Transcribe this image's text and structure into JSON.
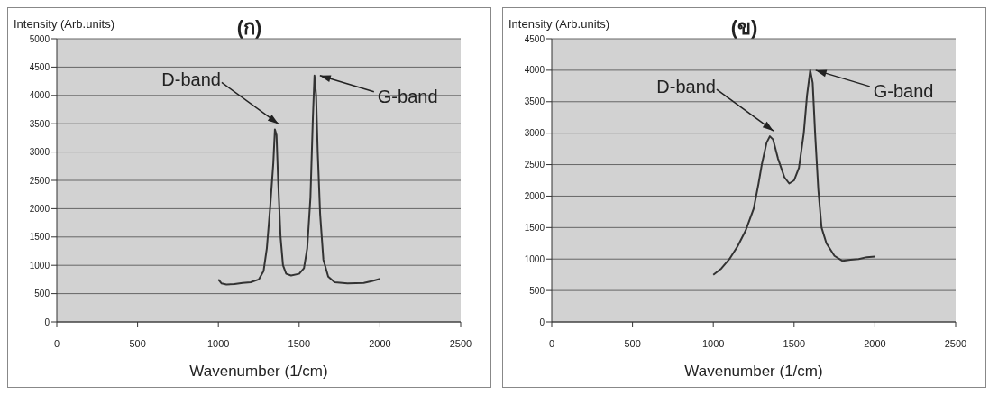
{
  "chart_data": [
    {
      "type": "line",
      "title": "(ก)",
      "xlabel": "Wavenumber (1/cm)",
      "ylabel": "Intensity (Arb.units)",
      "xlim": [
        0,
        2500
      ],
      "xticks": [
        0,
        500,
        1000,
        1500,
        2000,
        2500
      ],
      "ylim": [
        0,
        5000
      ],
      "yticks": [
        0,
        500,
        1000,
        1500,
        2000,
        2500,
        3000,
        3500,
        4000,
        4500,
        5000
      ],
      "grid": "y",
      "legend": false,
      "marker": "none",
      "line_style": "solid",
      "series": [
        {
          "color": "#333333",
          "x": [
            1000,
            1020,
            1050,
            1100,
            1150,
            1200,
            1250,
            1280,
            1300,
            1320,
            1340,
            1350,
            1360,
            1370,
            1385,
            1400,
            1420,
            1450,
            1500,
            1530,
            1550,
            1570,
            1585,
            1595,
            1605,
            1615,
            1630,
            1650,
            1680,
            1720,
            1800,
            1900,
            1950,
            2000
          ],
          "values": [
            750,
            680,
            660,
            670,
            690,
            700,
            750,
            900,
            1300,
            2000,
            2800,
            3400,
            3300,
            2500,
            1500,
            1000,
            850,
            820,
            850,
            950,
            1300,
            2200,
            3600,
            4350,
            4000,
            3000,
            1900,
            1100,
            800,
            700,
            680,
            690,
            720,
            760
          ]
        }
      ],
      "annotations": [
        {
          "text": "D-band",
          "x": 1350,
          "y": 3400
        },
        {
          "text": "G-band",
          "x": 1595,
          "y": 4350
        }
      ]
    },
    {
      "type": "line",
      "title": "(ข)",
      "xlabel": "Wavenumber (1/cm)",
      "ylabel": "Intensity (Arb.units)",
      "xlim": [
        0,
        2500
      ],
      "xticks": [
        0,
        500,
        1000,
        1500,
        2000,
        2500
      ],
      "ylim": [
        0,
        4500
      ],
      "yticks": [
        0,
        500,
        1000,
        1500,
        2000,
        2500,
        3000,
        3500,
        4000,
        4500
      ],
      "grid": "y",
      "legend": false,
      "marker": "none",
      "line_style": "solid",
      "series": [
        {
          "color": "#333333",
          "x": [
            1000,
            1050,
            1100,
            1150,
            1200,
            1250,
            1280,
            1300,
            1330,
            1350,
            1370,
            1400,
            1440,
            1470,
            1500,
            1530,
            1560,
            1580,
            1600,
            1615,
            1630,
            1650,
            1670,
            1700,
            1750,
            1800,
            1850,
            1900,
            1950,
            2000
          ],
          "values": [
            750,
            850,
            1000,
            1200,
            1450,
            1800,
            2200,
            2500,
            2850,
            2950,
            2900,
            2600,
            2300,
            2200,
            2250,
            2450,
            3000,
            3600,
            4000,
            3800,
            3000,
            2100,
            1500,
            1250,
            1050,
            970,
            990,
            1000,
            1030,
            1040
          ]
        }
      ],
      "annotations": [
        {
          "text": "D-band",
          "x": 1350,
          "y": 2950
        },
        {
          "text": "G-band",
          "x": 1600,
          "y": 4000
        }
      ]
    }
  ]
}
